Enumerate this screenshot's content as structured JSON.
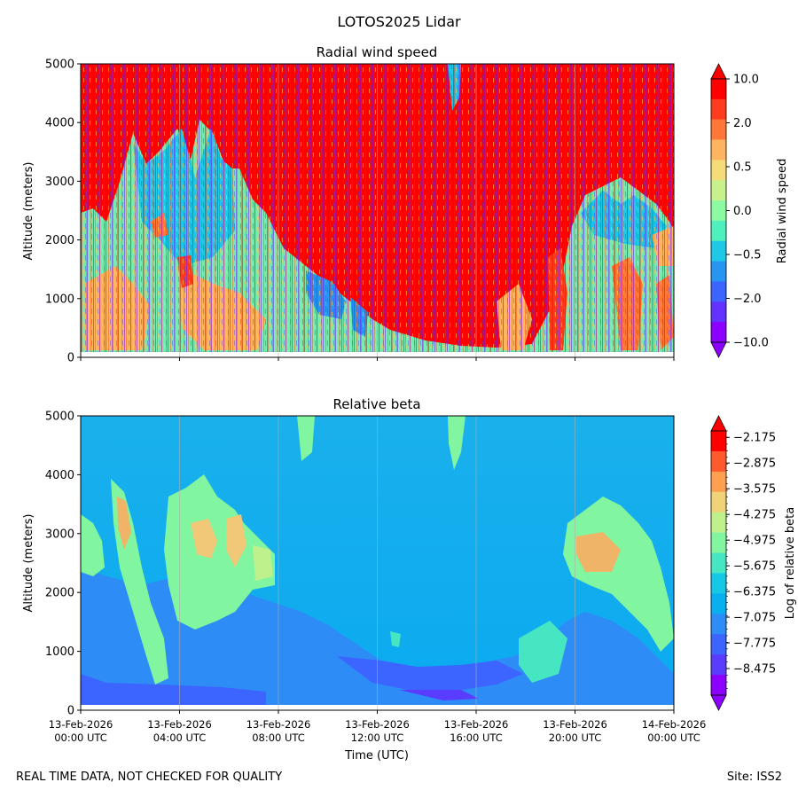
{
  "title": "LOTOS2025 Lidar",
  "footer": {
    "left": "REAL TIME DATA, NOT CHECKED FOR QUALITY",
    "right": "Site: ISS2"
  },
  "chart_data": [
    {
      "type": "heatmap",
      "title": "Radial wind speed",
      "ylabel": "Altitude (meters)",
      "xlabel": "",
      "ylim": [
        0,
        5000
      ],
      "xlim_hours": [
        0,
        24
      ],
      "yticks": [
        0,
        1000,
        2000,
        3000,
        4000,
        5000
      ],
      "xticks_hours": [
        0,
        4,
        8,
        12,
        16,
        20,
        24
      ],
      "colorbar": {
        "label": "Radial wind speed",
        "ticks": [
          "10.0",
          "2.0",
          "0.5",
          "0.0",
          "−0.5",
          "−2.0",
          "−10.0"
        ],
        "levels": 12,
        "colors_top_to_bottom": [
          "#ff0000",
          "#ff3c1e",
          "#ff7838",
          "#ffb460",
          "#f5dc78",
          "#c8f08c",
          "#8cfaa0",
          "#50f0be",
          "#1ec8e6",
          "#2896f0",
          "#3c64ff",
          "#6432ff",
          "#8c00ff"
        ]
      }
    },
    {
      "type": "heatmap",
      "title": "Relative beta",
      "ylabel": "Altitude (meters)",
      "xlabel": "Time (UTC)",
      "ylim": [
        0,
        5000
      ],
      "xlim_hours": [
        0,
        24
      ],
      "yticks": [
        0,
        1000,
        2000,
        3000,
        4000,
        5000
      ],
      "xticks_hours": [
        0,
        4,
        8,
        12,
        16,
        20,
        24
      ],
      "xtick_labels": [
        [
          "13-Feb-2026",
          "00:00 UTC"
        ],
        [
          "13-Feb-2026",
          "04:00 UTC"
        ],
        [
          "13-Feb-2026",
          "08:00 UTC"
        ],
        [
          "13-Feb-2026",
          "12:00 UTC"
        ],
        [
          "13-Feb-2026",
          "16:00 UTC"
        ],
        [
          "13-Feb-2026",
          "20:00 UTC"
        ],
        [
          "14-Feb-2026",
          "00:00 UTC"
        ]
      ],
      "colorbar": {
        "label": "Log of relative beta",
        "ticks": [
          "−2.175",
          "−2.875",
          "−3.575",
          "−4.275",
          "−4.975",
          "−5.675",
          "−6.375",
          "−7.075",
          "−7.775",
          "−8.475"
        ],
        "range": [
          -9.2,
          -2.0
        ],
        "colors_top_to_bottom": [
          "#ff0000",
          "#ff5a2d",
          "#ffa050",
          "#f0d278",
          "#bef08c",
          "#82f5a0",
          "#46e6c3",
          "#14c8e6",
          "#0aaff0",
          "#2d8cf5",
          "#3c64ff",
          "#5a3cff",
          "#8c00ff"
        ]
      }
    }
  ]
}
